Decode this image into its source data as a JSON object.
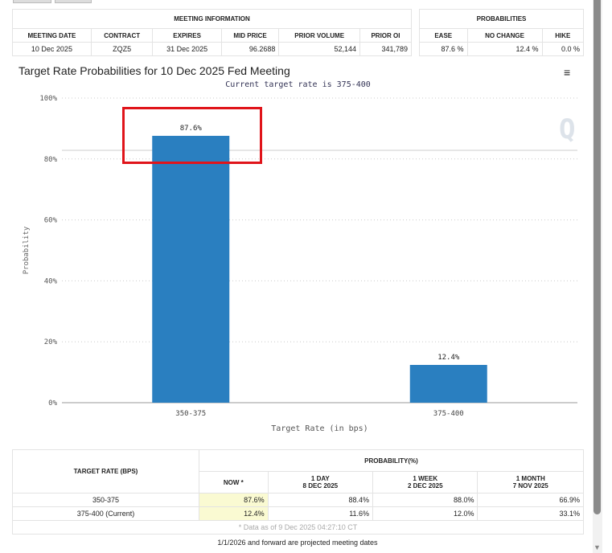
{
  "meeting_info": {
    "header": "MEETING INFORMATION",
    "columns": [
      "MEETING DATE",
      "CONTRACT",
      "EXPIRES",
      "MID PRICE",
      "PRIOR VOLUME",
      "PRIOR OI"
    ],
    "values": [
      "10 Dec 2025",
      "ZQZ5",
      "31 Dec 2025",
      "96.2688",
      "52,144",
      "341,789"
    ]
  },
  "probabilities": {
    "header": "PROBABILITIES",
    "columns": [
      "EASE",
      "NO CHANGE",
      "HIKE"
    ],
    "values": [
      "87.6 %",
      "12.4 %",
      "0.0 %"
    ]
  },
  "chart_data": {
    "type": "bar",
    "title": "Target Rate Probabilities for 10 Dec 2025 Fed Meeting",
    "subtitle": "Current target rate is 375-400",
    "xlabel": "Target Rate (in bps)",
    "ylabel": "Probability",
    "categories": [
      "350-375",
      "375-400"
    ],
    "values": [
      87.6,
      12.4
    ],
    "data_labels": [
      "87.6%",
      "12.4%"
    ],
    "yticks": [
      "0%",
      "20%",
      "40%",
      "60%",
      "80%",
      "100%"
    ],
    "ylim": [
      0,
      100
    ],
    "bar_color": "#2a7fc0",
    "highlight_color": "#e0141a"
  },
  "prob_table": {
    "rate_header": "TARGET RATE (BPS)",
    "prob_header": "PROBABILITY(%)",
    "cols": [
      {
        "l1": "NOW *",
        "l2": ""
      },
      {
        "l1": "1 DAY",
        "l2": "8 DEC 2025"
      },
      {
        "l1": "1 WEEK",
        "l2": "2 DEC 2025"
      },
      {
        "l1": "1 MONTH",
        "l2": "7 NOV 2025"
      }
    ],
    "rows": [
      {
        "rate": "350-375",
        "vals": [
          "87.6%",
          "88.4%",
          "88.0%",
          "66.9%"
        ]
      },
      {
        "rate": "375-400 (Current)",
        "vals": [
          "12.4%",
          "11.6%",
          "12.0%",
          "33.1%"
        ]
      }
    ],
    "note": "* Data as of 9 Dec 2025 04:27:10 CT"
  },
  "footer": "1/1/2026 and forward are projected meeting dates"
}
